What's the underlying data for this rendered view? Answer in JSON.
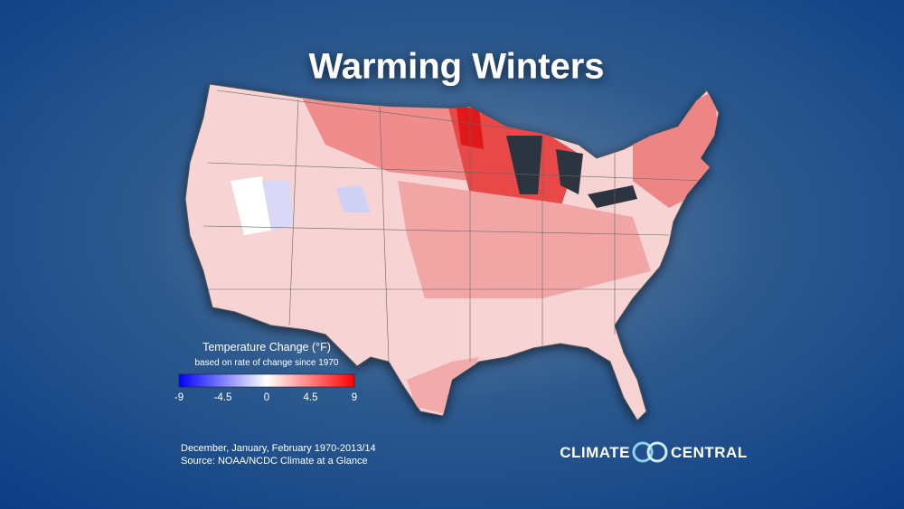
{
  "header": {
    "title": "Warming Winters"
  },
  "legend": {
    "title": "Temperature Change (°F)",
    "subtitle": "based on rate of change since 1970",
    "lim": [
      -9,
      9
    ],
    "ticks": [
      -9,
      -4.5,
      0,
      4.5,
      9
    ],
    "colors": [
      "#0000ff",
      "#ffffff",
      "#ff0000"
    ]
  },
  "footer": {
    "lines": [
      "December, January, February 1970-2013/14",
      "Source: NOAA/NCDC Climate at a Glance"
    ]
  },
  "logo": {
    "left": "CLIMATE",
    "right": "CENTRAL"
  }
}
